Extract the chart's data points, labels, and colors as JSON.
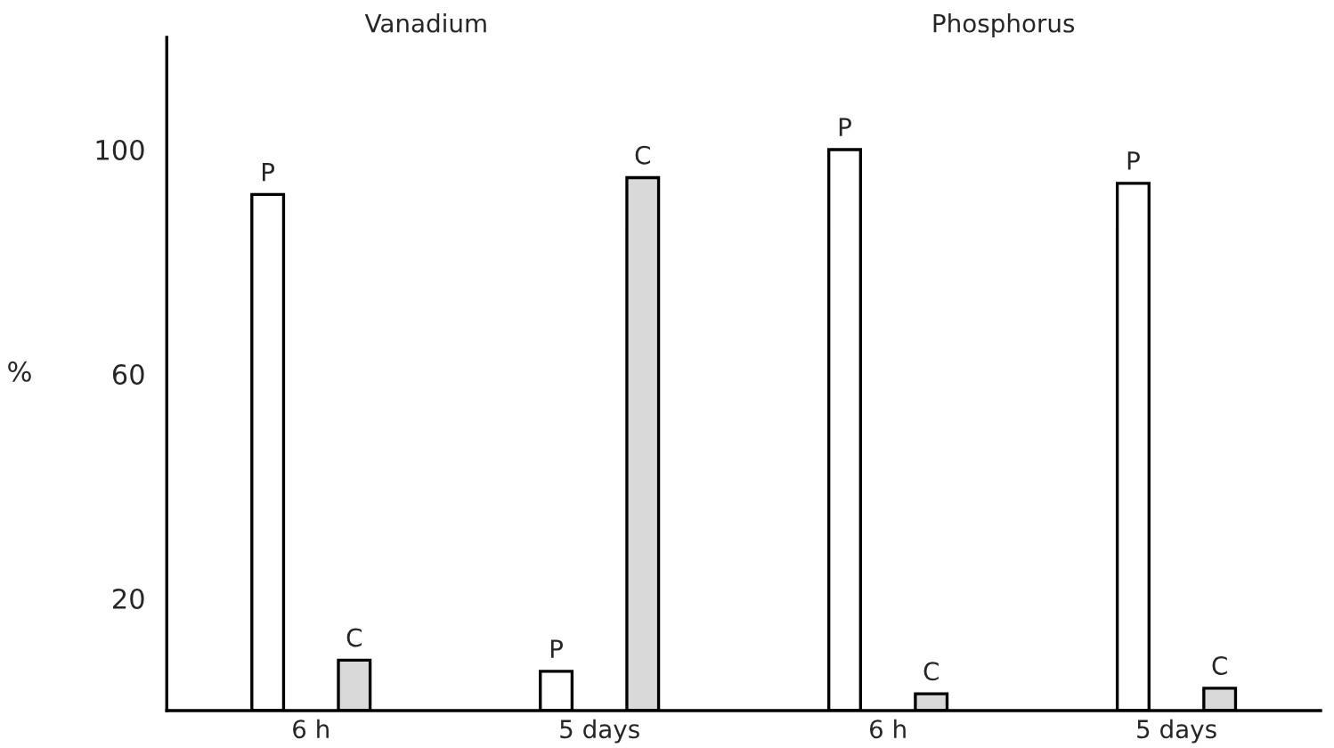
{
  "chart_data": {
    "type": "bar",
    "ylabel": "%",
    "categories": [
      "6 h",
      "5 days",
      "6 h",
      "5 days"
    ],
    "series": [
      {
        "name": "P",
        "color": "#ffffff",
        "values": [
          92,
          7,
          100,
          94
        ]
      },
      {
        "name": "C",
        "color": "#d9d9d9",
        "values": [
          9,
          95,
          3,
          4
        ]
      }
    ],
    "annotations": [
      "Vanadium",
      "Phosphorus"
    ],
    "ylim": [
      0,
      120
    ],
    "yticks": [
      20,
      60,
      100
    ],
    "grid": false,
    "legend": false
  }
}
